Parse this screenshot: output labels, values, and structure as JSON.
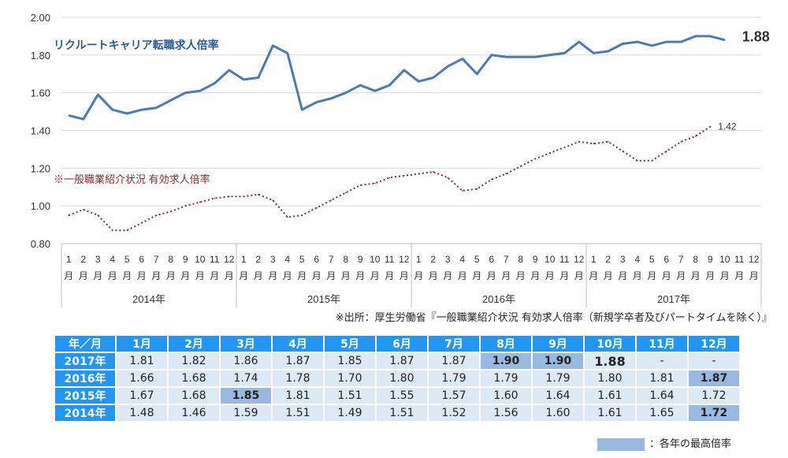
{
  "chart_data": {
    "type": "line",
    "ylim": [
      0.8,
      2.0
    ],
    "yticks": [
      "0.80",
      "1.00",
      "1.20",
      "1.40",
      "1.60",
      "1.80",
      "2.00"
    ],
    "month_labels": [
      "1月",
      "2月",
      "3月",
      "4月",
      "5月",
      "6月",
      "7月",
      "8月",
      "9月",
      "10月",
      "11月",
      "12月"
    ],
    "years": [
      "2014年",
      "2015年",
      "2016年",
      "2017年"
    ],
    "grid": true,
    "series": [
      {
        "name": "リクルートキャリア転職求人倍率",
        "color": "#4a7ab8",
        "style": "solid",
        "end_label": "1.88",
        "values": [
          1.48,
          1.46,
          1.59,
          1.51,
          1.49,
          1.51,
          1.52,
          1.56,
          1.6,
          1.61,
          1.65,
          1.72,
          1.67,
          1.68,
          1.85,
          1.81,
          1.51,
          1.55,
          1.57,
          1.6,
          1.64,
          1.61,
          1.64,
          1.72,
          1.66,
          1.68,
          1.74,
          1.78,
          1.7,
          1.8,
          1.79,
          1.79,
          1.79,
          1.8,
          1.81,
          1.87,
          1.81,
          1.82,
          1.86,
          1.87,
          1.85,
          1.87,
          1.87,
          1.9,
          1.9,
          1.88
        ]
      },
      {
        "name": "※一般職業紹介状況 有効求人倍率",
        "color": "#8b2a2a",
        "style": "dotted",
        "end_label": "1.42",
        "values": [
          0.95,
          0.98,
          0.95,
          0.87,
          0.87,
          0.91,
          0.95,
          0.97,
          1.0,
          1.02,
          1.04,
          1.05,
          1.05,
          1.06,
          1.03,
          0.94,
          0.95,
          0.99,
          1.03,
          1.07,
          1.11,
          1.12,
          1.15,
          1.16,
          1.17,
          1.18,
          1.15,
          1.08,
          1.09,
          1.14,
          1.17,
          1.21,
          1.25,
          1.28,
          1.31,
          1.34,
          1.33,
          1.34,
          1.29,
          1.24,
          1.24,
          1.29,
          1.34,
          1.37,
          1.42
        ]
      }
    ]
  },
  "source_note": "※出所：厚生労働省『一般職業紹介状況 有効求人倍率（新規学卒者及びパートタイムを除く）』",
  "table": {
    "corner": "年／月",
    "months": [
      "1月",
      "2月",
      "3月",
      "4月",
      "5月",
      "6月",
      "7月",
      "8月",
      "9月",
      "10月",
      "11月",
      "12月"
    ],
    "rows": [
      {
        "year": "2017年",
        "cells": [
          "1.81",
          "1.82",
          "1.86",
          "1.87",
          "1.85",
          "1.87",
          "1.87",
          "1.90",
          "1.90",
          "1.88",
          "-",
          "-"
        ]
      },
      {
        "year": "2016年",
        "cells": [
          "1.66",
          "1.68",
          "1.74",
          "1.78",
          "1.70",
          "1.80",
          "1.79",
          "1.79",
          "1.79",
          "1.80",
          "1.81",
          "1.87"
        ]
      },
      {
        "year": "2015年",
        "cells": [
          "1.67",
          "1.68",
          "1.85",
          "1.81",
          "1.51",
          "1.55",
          "1.57",
          "1.60",
          "1.64",
          "1.61",
          "1.64",
          "1.72"
        ]
      },
      {
        "year": "2014年",
        "cells": [
          "1.48",
          "1.46",
          "1.59",
          "1.51",
          "1.49",
          "1.51",
          "1.52",
          "1.56",
          "1.60",
          "1.61",
          "1.65",
          "1.72"
        ]
      }
    ],
    "highlight_color": "#9ab9e0"
  },
  "legend_note": "：各年の最高倍率"
}
